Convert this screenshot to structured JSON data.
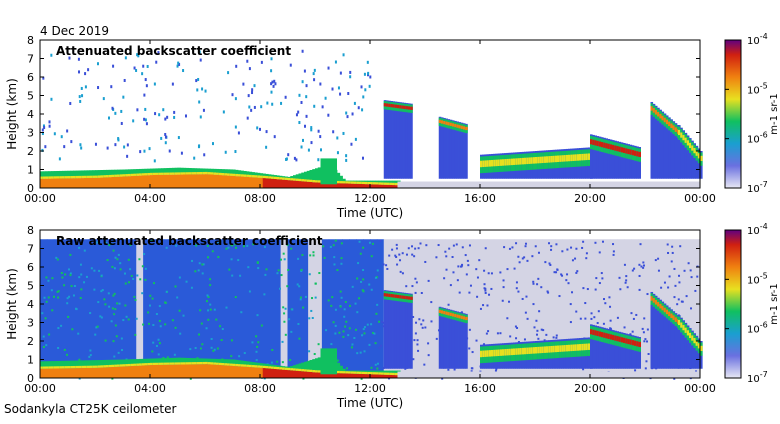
{
  "date": "4 Dec 2019",
  "footer": "Sodankyla CT25K ceilometer",
  "colors": {
    "ramp": [
      "#d0d0e0",
      "#3a4fd8",
      "#1a9fd0",
      "#10c060",
      "#e8e020",
      "#f08010",
      "#d02010",
      "#600080"
    ]
  },
  "chart_data": [
    {
      "type": "heatmap",
      "title": "Attenuated backscatter coefficient",
      "xlabel": "Time (UTC)",
      "ylabel": "Height (km)",
      "x_ticks": [
        "00:00",
        "04:00",
        "08:00",
        "12:00",
        "16:00",
        "20:00",
        "00:00"
      ],
      "xlim": [
        0,
        24
      ],
      "y_ticks": [
        "0",
        "1",
        "2",
        "3",
        "4",
        "5",
        "6",
        "7",
        "8"
      ],
      "ylim": [
        0,
        8
      ],
      "grid": false,
      "colorbar": {
        "label": "m-1 sr-1",
        "scale": "log",
        "ticks": [
          {
            "base": "10",
            "exp": "-4"
          },
          {
            "base": "10",
            "exp": "-5"
          },
          {
            "base": "10",
            "exp": "-6"
          },
          {
            "base": "10",
            "exp": "-7"
          }
        ],
        "range": [
          1e-07,
          0.0001
        ]
      }
    },
    {
      "type": "heatmap",
      "title": "Raw attenuated backscatter coefficient",
      "xlabel": "Time (UTC)",
      "ylabel": "Height (km)",
      "x_ticks": [
        "00:00",
        "04:00",
        "08:00",
        "12:00",
        "16:00",
        "20:00",
        "00:00"
      ],
      "xlim": [
        0,
        24
      ],
      "y_ticks": [
        "0",
        "1",
        "2",
        "3",
        "4",
        "5",
        "6",
        "7",
        "8"
      ],
      "ylim": [
        0,
        8
      ],
      "grid": false,
      "colorbar": {
        "label": "m-1 sr-1",
        "scale": "log",
        "ticks": [
          {
            "base": "10",
            "exp": "-4"
          },
          {
            "base": "10",
            "exp": "-5"
          },
          {
            "base": "10",
            "exp": "-6"
          },
          {
            "base": "10",
            "exp": "-7"
          }
        ],
        "range": [
          1e-07,
          0.0001
        ]
      }
    }
  ]
}
